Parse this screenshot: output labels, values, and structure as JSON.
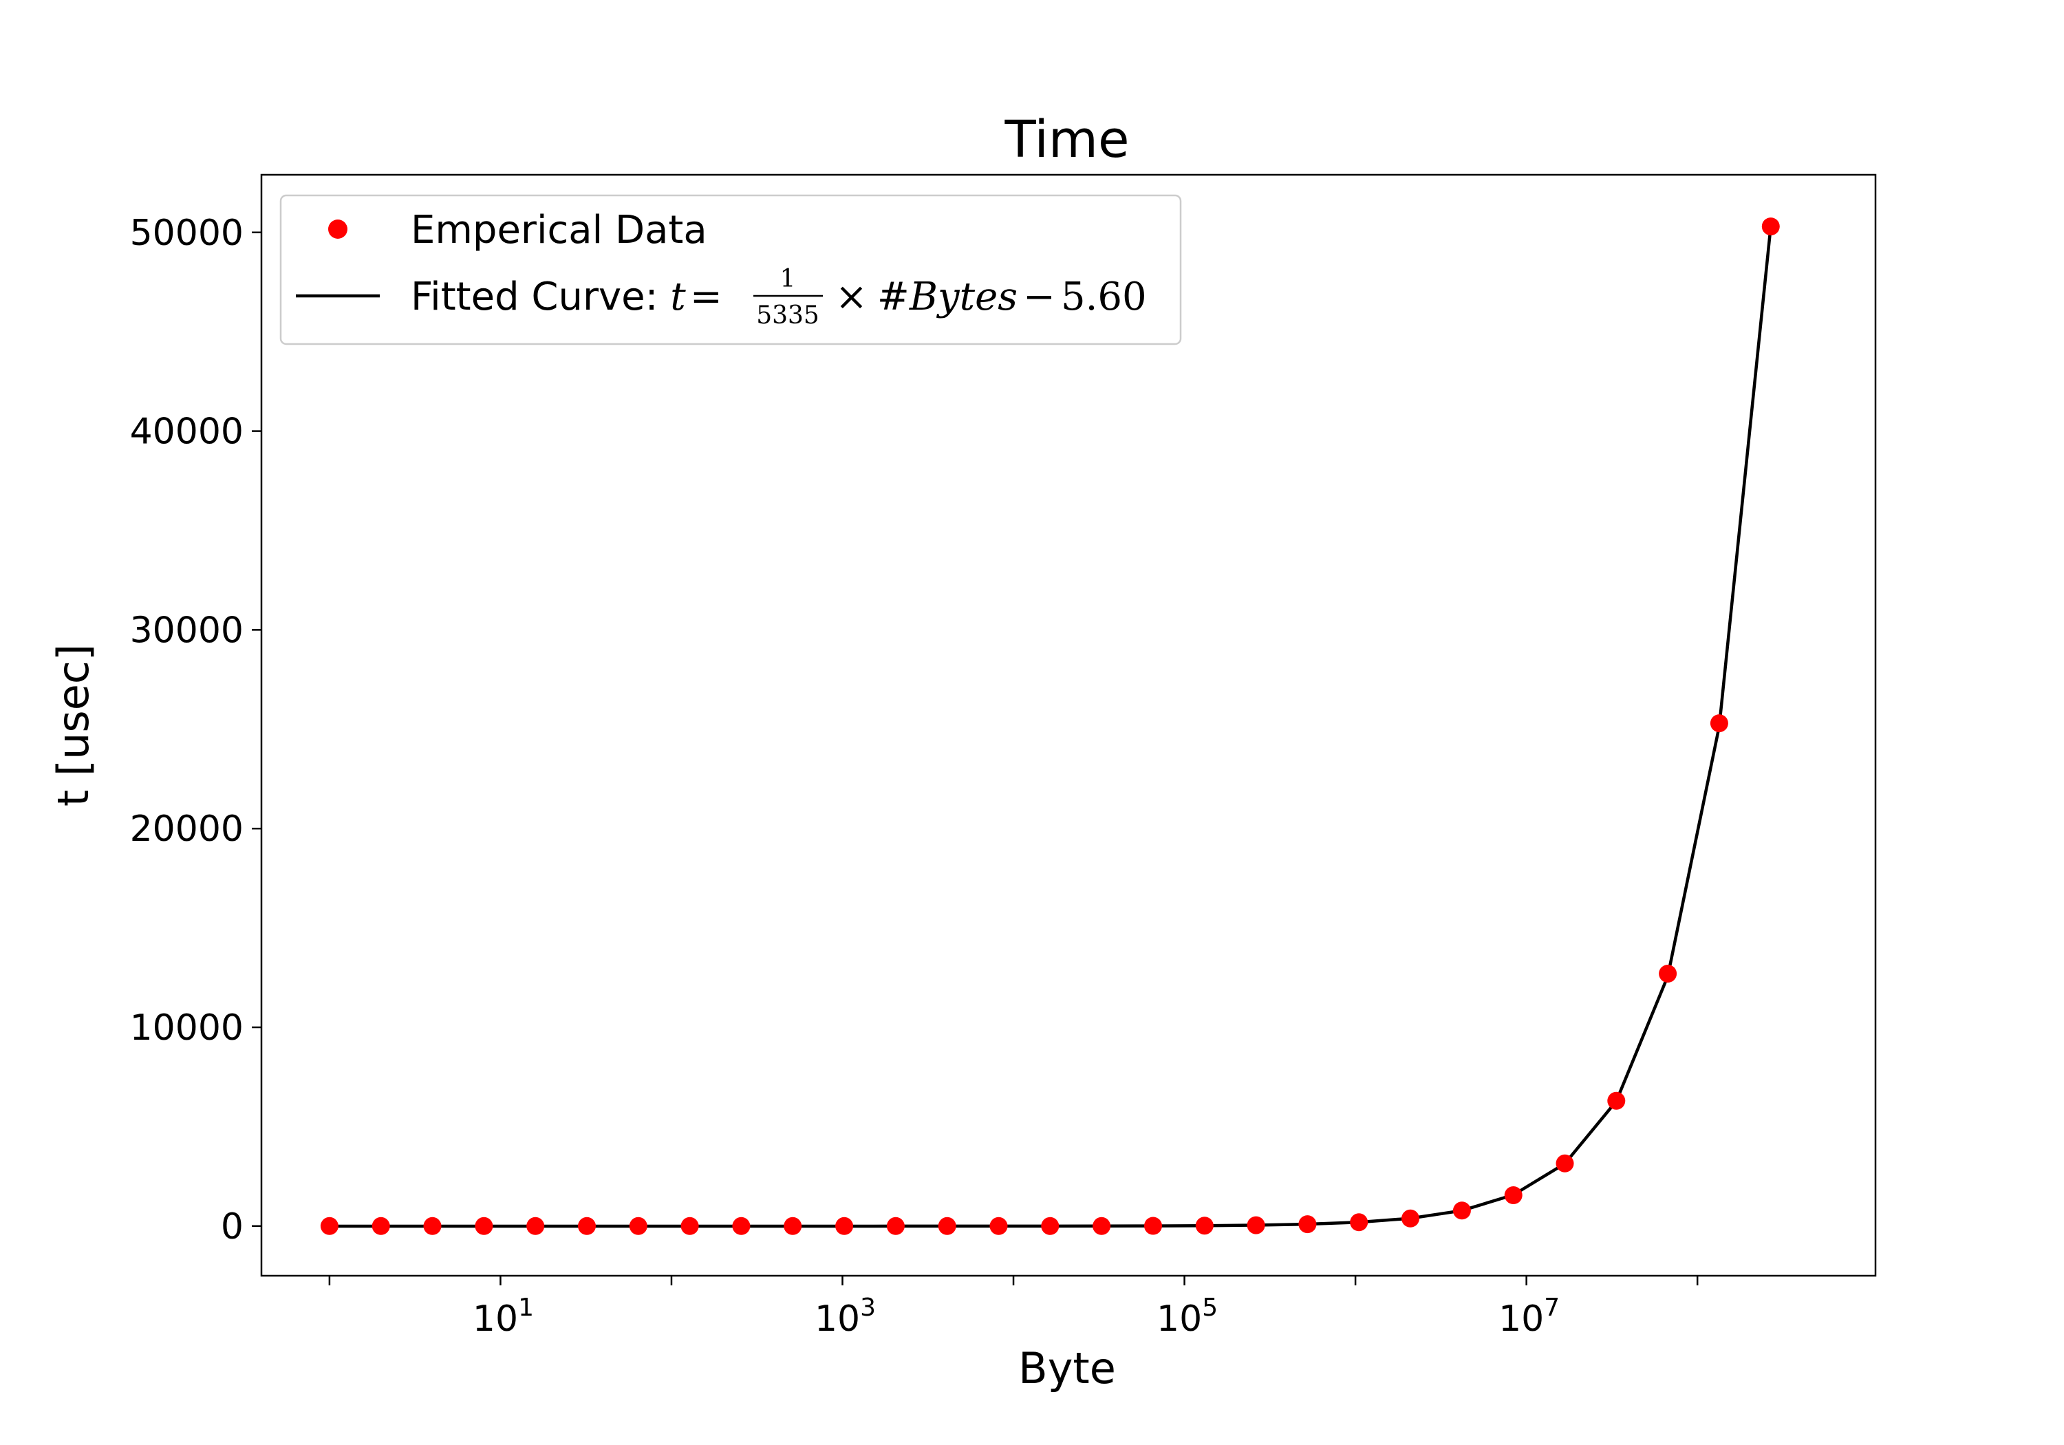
{
  "chart_data": {
    "type": "scatter",
    "title": "Time",
    "xlabel": "Byte",
    "ylabel": "t [usec]",
    "x_scale": "log",
    "x_tick_labels": [
      {
        "base": "10",
        "exp": "1",
        "value": 10
      },
      {
        "base": "10",
        "exp": "3",
        "value": 1000
      },
      {
        "base": "10",
        "exp": "5",
        "value": 100000
      },
      {
        "base": "10",
        "exp": "7",
        "value": 10000000
      }
    ],
    "y_ticks": [
      0,
      10000,
      20000,
      30000,
      40000,
      50000
    ],
    "y_tick_labels": [
      "0",
      "10000",
      "20000",
      "30000",
      "40000",
      "50000"
    ],
    "xlim": [
      0.4,
      1100000000
    ],
    "ylim": [
      -2500,
      52900
    ],
    "grid": false,
    "legend_position": "top-left",
    "legend": {
      "empirical_label": "Emperical Data",
      "fit_label_prefix": "Fitted Curve: ",
      "fit_t": "t",
      "fit_eq": "=",
      "fit_num": "1",
      "fit_den": "5335",
      "fit_times": "×",
      "fit_bytes": "#Bytes",
      "fit_minus": "−",
      "fit_const": "5.60"
    },
    "series": [
      {
        "name": "Emperical Data",
        "style": "markers",
        "color": "#ff0000",
        "x": [
          1,
          2,
          4,
          8,
          16,
          32,
          64,
          128,
          256,
          512,
          1024,
          2048,
          4096,
          8192,
          16384,
          32768,
          65536,
          131072,
          262144,
          524288,
          1048576,
          2097152,
          4194304,
          8388608,
          16777216,
          33554432,
          67108864,
          134217728,
          268435456
        ],
        "y": [
          0,
          0,
          0,
          0,
          0,
          0,
          0,
          0,
          0,
          0,
          0,
          0,
          0,
          0,
          0,
          0,
          10,
          20,
          40,
          95,
          190,
          380,
          780,
          1550,
          3150,
          6300,
          12700,
          25300,
          50300
        ]
      },
      {
        "name": "Fitted Curve",
        "style": "line",
        "color": "#000000",
        "slope_denominator": 5335,
        "intercept": -5.6
      }
    ]
  }
}
